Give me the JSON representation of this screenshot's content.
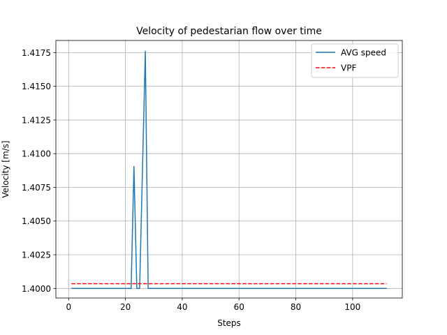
{
  "chart_data": {
    "type": "line",
    "title": "Velocity of pedestarian flow over time",
    "xlabel": "Steps",
    "ylabel": "Velocity [m/s]",
    "xlim": [
      -4.5,
      117.5
    ],
    "ylim": [
      1.39929,
      1.4184
    ],
    "xticks": [
      0,
      20,
      40,
      60,
      80,
      100
    ],
    "xtick_labels": [
      "0",
      "20",
      "40",
      "60",
      "80",
      "100"
    ],
    "yticks": [
      1.4,
      1.4025,
      1.405,
      1.4075,
      1.41,
      1.4125,
      1.415,
      1.4175
    ],
    "ytick_labels": [
      "1.4000",
      "1.4025",
      "1.4050",
      "1.4075",
      "1.4100",
      "1.4125",
      "1.4150",
      "1.4175"
    ],
    "grid": true,
    "legend_position": "top-right",
    "series": [
      {
        "name": "AVG speed",
        "color": "#1f77b4",
        "style": "solid",
        "x": [
          1,
          22,
          23,
          24,
          25,
          26,
          27,
          28,
          112
        ],
        "y": [
          1.4,
          1.4,
          1.40905,
          1.4,
          1.4,
          1.4088,
          1.4176,
          1.4,
          1.4
        ]
      },
      {
        "name": "VPF",
        "color": "#ff0000",
        "style": "dashed",
        "x": [
          1,
          112
        ],
        "y": [
          1.40035,
          1.40035
        ]
      }
    ]
  }
}
